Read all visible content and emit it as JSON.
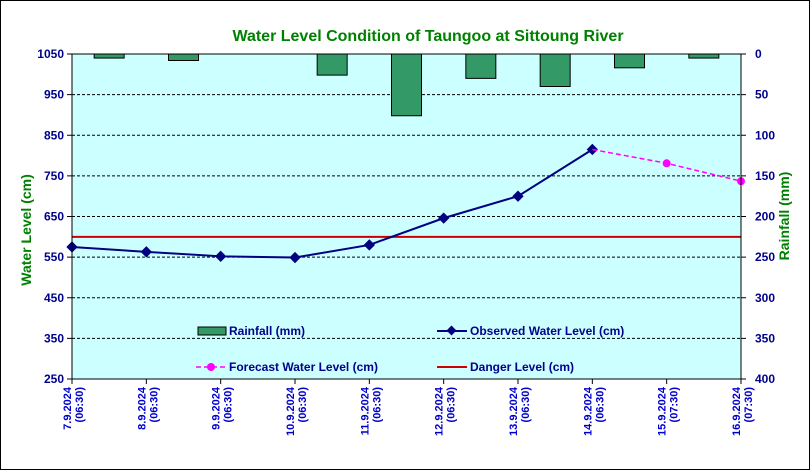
{
  "chart_data": {
    "type": "line",
    "title": "Water Level Condition of Taungoo at  Sittoung River",
    "ylabel_left": "Water Level (cm)",
    "ylabel_right": "Rainfall (mm)",
    "ylim_left": [
      250,
      1050
    ],
    "yticks_left": [
      250,
      350,
      450,
      550,
      650,
      750,
      850,
      950,
      1050
    ],
    "ylim_right": [
      0,
      400
    ],
    "yticks_right": [
      0,
      50,
      100,
      150,
      200,
      250,
      300,
      350,
      400
    ],
    "right_axis_inverted": true,
    "grid": "horizontal dashed",
    "categories": [
      [
        "7.9.2024",
        "(06:30)"
      ],
      [
        "8.9.2024",
        "(06:30)"
      ],
      [
        "9.9.2024",
        "(06:30)"
      ],
      [
        "10.9.2024",
        "(06:30)"
      ],
      [
        "11.9.2024",
        "(06:30)"
      ],
      [
        "12.9.2024",
        "(06:30)"
      ],
      [
        "13.9.2024",
        "(06:30)"
      ],
      [
        "14.9.2024",
        "(06:30)"
      ],
      [
        "15.9.2024",
        "(07:30)"
      ],
      [
        "16.9.2024",
        "(07:30)"
      ]
    ],
    "rainfall": {
      "name": "Rainfall (mm)",
      "values": [
        5,
        8,
        0,
        26,
        76,
        30,
        40,
        17,
        5,
        0
      ],
      "color": "#339966"
    },
    "observed": {
      "name": "Observed Water Level (cm)",
      "values": [
        575,
        563,
        552,
        549,
        580,
        646,
        700,
        815,
        null,
        null
      ],
      "color": "#000080"
    },
    "forecast": {
      "name": "Forecast Water Level (cm)",
      "values": [
        null,
        null,
        null,
        null,
        null,
        null,
        null,
        815,
        781,
        737
      ],
      "color": "#ff00ff"
    },
    "danger": {
      "name": "Danger Level (cm)",
      "value": 600,
      "color": "#cc0000"
    },
    "plot_background": "#ccffff"
  }
}
